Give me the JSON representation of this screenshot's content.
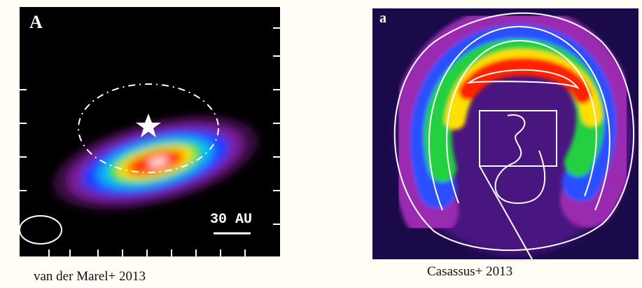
{
  "panels": [
    {
      "label": "A",
      "scale_label": "30 AU",
      "caption": "van der Marel+ 2013"
    },
    {
      "label": "a",
      "caption": "Casassus+ 2013"
    }
  ]
}
